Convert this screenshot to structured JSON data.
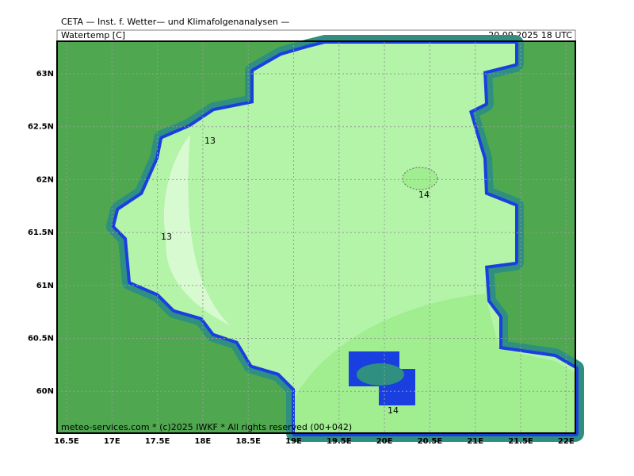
{
  "header": {
    "title": "CETA — Inst. f. Wetter— und Klimafolgenanalysen —",
    "parameter": "Watertemp [C]",
    "valid_time": "20.09.2025 18 UTC"
  },
  "axes": {
    "lat_labels": [
      "63N",
      "62.5N",
      "62N",
      "61.5N",
      "61N",
      "60.5N",
      "60N"
    ],
    "lon_labels": [
      "16.5E",
      "17E",
      "17.5E",
      "18E",
      "18.5E",
      "19E",
      "19.5E",
      "20E",
      "20.5E",
      "21E",
      "21.5E",
      "22E"
    ]
  },
  "contour_labels": [
    "13",
    "13",
    "14",
    "14"
  ],
  "footer": "meteo-services.com * (c)2025 IWKF * All rights reserved (00+042)"
}
